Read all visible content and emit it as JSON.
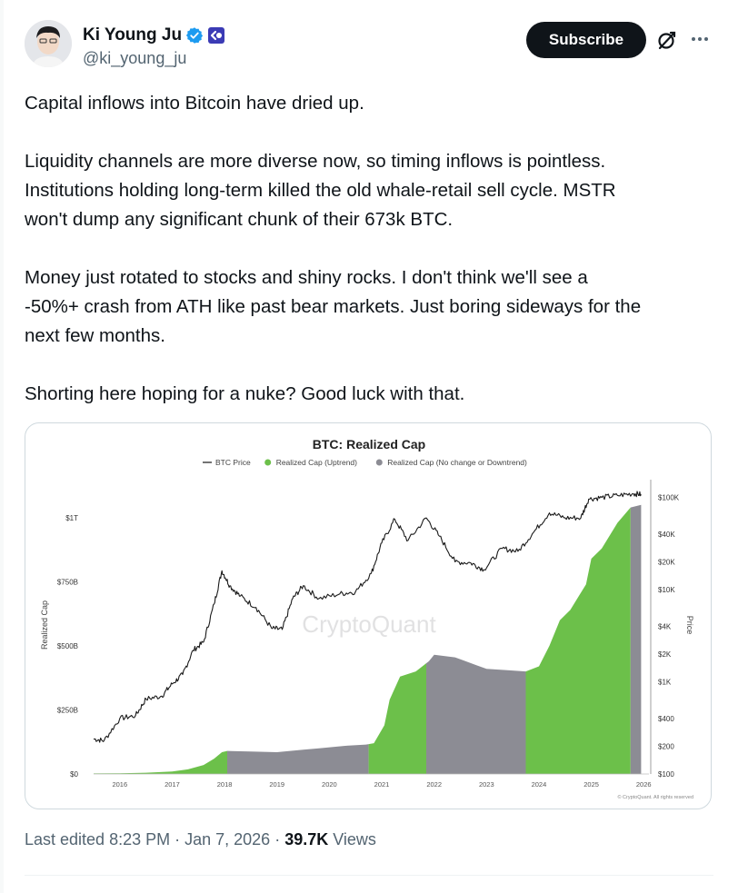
{
  "author": {
    "display_name": "Ki Young Ju",
    "handle": "@ki_young_ju",
    "verified_icon": "verified-badge-icon",
    "affiliation_icon": "cryptoquant-logo-icon",
    "brand_color": "#1d9bf0",
    "affiliation_color": "#3b3bb5"
  },
  "actions": {
    "subscribe_label": "Subscribe",
    "grok_icon": "grok-icon",
    "more_icon": "more-horizontal-icon"
  },
  "tweet": {
    "paragraphs": [
      [
        "Capital inflows into Bitcoin have dried up."
      ],
      [
        "Liquidity channels are more diverse now, so timing inflows is pointless.",
        "Institutions holding long-term killed the old whale-retail sell cycle. MSTR",
        "won't dump any significant chunk of their 673k BTC."
      ],
      [
        "Money just rotated to stocks and shiny rocks. I don't think we'll see a",
        "-50%+ crash from ATH like past bear markets. Just boring sideways for the",
        "next few months."
      ],
      [
        "Shorting here hoping for a nuke? Good luck with that."
      ]
    ]
  },
  "chart_data": {
    "type": "area",
    "title": "BTC: Realized Cap",
    "legend": [
      {
        "name": "BTC Price",
        "style": "line",
        "color": "#1a1a1a"
      },
      {
        "name": "Realized Cap (Uptrend)",
        "style": "dot",
        "color": "#6cc04a"
      },
      {
        "name": "Realized Cap (No change or Downtrend)",
        "style": "dot",
        "color": "#8c8c94"
      }
    ],
    "legend_placement": "top-center",
    "ylabel": "Realized Cap",
    "y2label": "Price",
    "watermark": "CryptoQuant",
    "footer": "© CryptoQuant. All rights reserved",
    "x_ticks": [
      "2016",
      "2017",
      "2018",
      "2019",
      "2020",
      "2021",
      "2022",
      "2023",
      "2024",
      "2025",
      "2026"
    ],
    "y_ticks": [
      {
        "label": "$0",
        "value": 0
      },
      {
        "label": "$250B",
        "value": 250
      },
      {
        "label": "$500B",
        "value": 500
      },
      {
        "label": "$750B",
        "value": 750
      },
      {
        "label": "$1T",
        "value": 1000
      }
    ],
    "y2_ticks": [
      {
        "label": "$100",
        "value": 100
      },
      {
        "label": "$200",
        "value": 200
      },
      {
        "label": "$400",
        "value": 400
      },
      {
        "label": "$1K",
        "value": 1000
      },
      {
        "label": "$2K",
        "value": 2000
      },
      {
        "label": "$4K",
        "value": 4000
      },
      {
        "label": "$10K",
        "value": 10000
      },
      {
        "label": "$20K",
        "value": 20000
      },
      {
        "label": "$40K",
        "value": 40000
      },
      {
        "label": "$100K",
        "value": 100000
      }
    ],
    "ylim": [
      0,
      1120
    ],
    "y2lim": [
      100,
      130000
    ],
    "xlim": [
      2015.5,
      2026.1
    ],
    "grid": false,
    "colors": {
      "uptrend": "#6cc04a",
      "flat": "#8c8c94",
      "price": "#1a1a1a"
    },
    "realized_cap": {
      "x": [
        2015.5,
        2016.0,
        2016.5,
        2017.0,
        2017.3,
        2017.6,
        2017.8,
        2017.95,
        2018.05,
        2018.5,
        2019.0,
        2019.5,
        2019.8,
        2020.3,
        2020.7,
        2020.85,
        2021.05,
        2021.15,
        2021.35,
        2021.65,
        2021.9,
        2022.0,
        2022.4,
        2022.8,
        2023.0,
        2023.4,
        2023.75,
        2024.0,
        2024.2,
        2024.4,
        2024.6,
        2024.9,
        2025.0,
        2025.2,
        2025.5,
        2025.75,
        2025.95
      ],
      "y": [
        2,
        3,
        5,
        10,
        18,
        35,
        60,
        85,
        90,
        88,
        85,
        95,
        100,
        110,
        115,
        120,
        190,
        290,
        380,
        400,
        440,
        465,
        455,
        425,
        410,
        405,
        400,
        420,
        500,
        600,
        640,
        740,
        840,
        880,
        980,
        1040,
        1050
      ],
      "segments": [
        {
          "trend": "uptrend",
          "from": 2015.5,
          "to": 2018.05
        },
        {
          "trend": "flat",
          "from": 2018.05,
          "to": 2020.75
        },
        {
          "trend": "uptrend",
          "from": 2020.75,
          "to": 2021.85
        },
        {
          "trend": "flat",
          "from": 2021.85,
          "to": 2023.75
        },
        {
          "trend": "uptrend",
          "from": 2023.75,
          "to": 2025.75
        },
        {
          "trend": "flat",
          "from": 2025.75,
          "to": 2025.95
        }
      ]
    },
    "btc_price": {
      "x": [
        2015.5,
        2015.7,
        2016.0,
        2016.3,
        2016.5,
        2016.8,
        2017.0,
        2017.2,
        2017.4,
        2017.6,
        2017.8,
        2017.95,
        2018.1,
        2018.3,
        2018.6,
        2018.9,
        2019.1,
        2019.3,
        2019.5,
        2019.8,
        2020.2,
        2020.5,
        2020.8,
        2021.0,
        2021.25,
        2021.5,
        2021.85,
        2022.1,
        2022.4,
        2022.7,
        2022.95,
        2023.3,
        2023.6,
        2023.9,
        2024.2,
        2024.5,
        2024.8,
        2024.95,
        2025.2,
        2025.5,
        2025.8,
        2025.95
      ],
      "y": [
        240,
        230,
        400,
        430,
        650,
        700,
        950,
        1200,
        2200,
        2700,
        7000,
        16000,
        11000,
        8500,
        6400,
        3800,
        3700,
        8000,
        11000,
        8000,
        9000,
        9500,
        15000,
        32000,
        58000,
        34000,
        60000,
        38000,
        20000,
        19500,
        16500,
        28000,
        26000,
        42000,
        68000,
        60000,
        60000,
        96000,
        100000,
        105000,
        110000,
        108000
      ]
    }
  },
  "post_meta": {
    "edited": "Last edited 8:23 PM",
    "date": "Jan 7, 2026",
    "separator": "·",
    "views_count": "39.7K",
    "views_label": "Views"
  }
}
